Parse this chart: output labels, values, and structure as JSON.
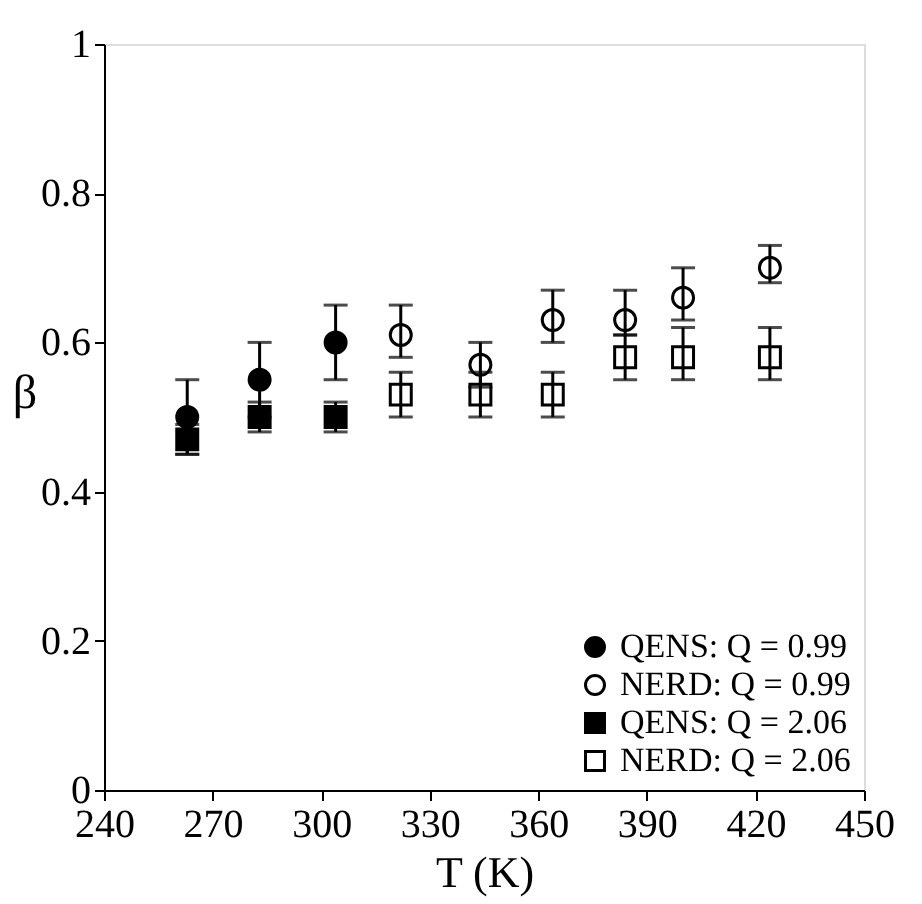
{
  "chart_data": {
    "type": "scatter",
    "xlabel": "T (K)",
    "ylabel": "β",
    "xlim": [
      240,
      450
    ],
    "xticks": [
      240,
      270,
      300,
      330,
      360,
      390,
      420,
      450
    ],
    "ylim": [
      0,
      1
    ],
    "yticks": [
      0,
      0.2,
      0.4,
      0.6,
      0.8,
      1
    ],
    "legend": "bottom right",
    "grid": false,
    "series": [
      {
        "name": "QENS: Q = 0.99",
        "color": "#000000",
        "marker": "circle",
        "x": [
          263,
          283,
          304
        ],
        "values": [
          0.5,
          0.55,
          0.6
        ],
        "errors": [
          0.05,
          0.05,
          0.05
        ]
      },
      {
        "name": "NERD: Q = 0.99",
        "color": "#ffffff",
        "marker": "circle",
        "x": [
          322,
          344,
          364,
          384,
          400,
          424
        ],
        "values": [
          0.61,
          0.57,
          0.63,
          0.63,
          0.66,
          0.7
        ],
        "errors": [
          [
            0.58,
            0.65
          ],
          0.03,
          [
            0.6,
            0.67
          ],
          [
            0.61,
            0.67
          ],
          [
            0.63,
            0.7
          ],
          [
            0.68,
            0.73
          ]
        ]
      },
      {
        "name": "QENS: Q = 2.06",
        "color": "#000000",
        "marker": "square",
        "x": [
          263,
          283,
          304
        ],
        "values": [
          0.47,
          0.5,
          0.5
        ],
        "errors": [
          0.02,
          0.02,
          0.02
        ]
      },
      {
        "name": "NERD: Q = 2.06",
        "color": "#ffffff",
        "marker": "square",
        "x": [
          322,
          344,
          364,
          384,
          400,
          424
        ],
        "values": [
          0.53,
          0.53,
          0.53,
          0.58,
          0.58,
          0.58
        ],
        "errors": [
          0.03,
          [
            0.5,
            0.56
          ],
          0.03,
          [
            0.55,
            0.61
          ],
          [
            0.55,
            0.62
          ],
          [
            0.55,
            0.62
          ]
        ]
      }
    ]
  }
}
